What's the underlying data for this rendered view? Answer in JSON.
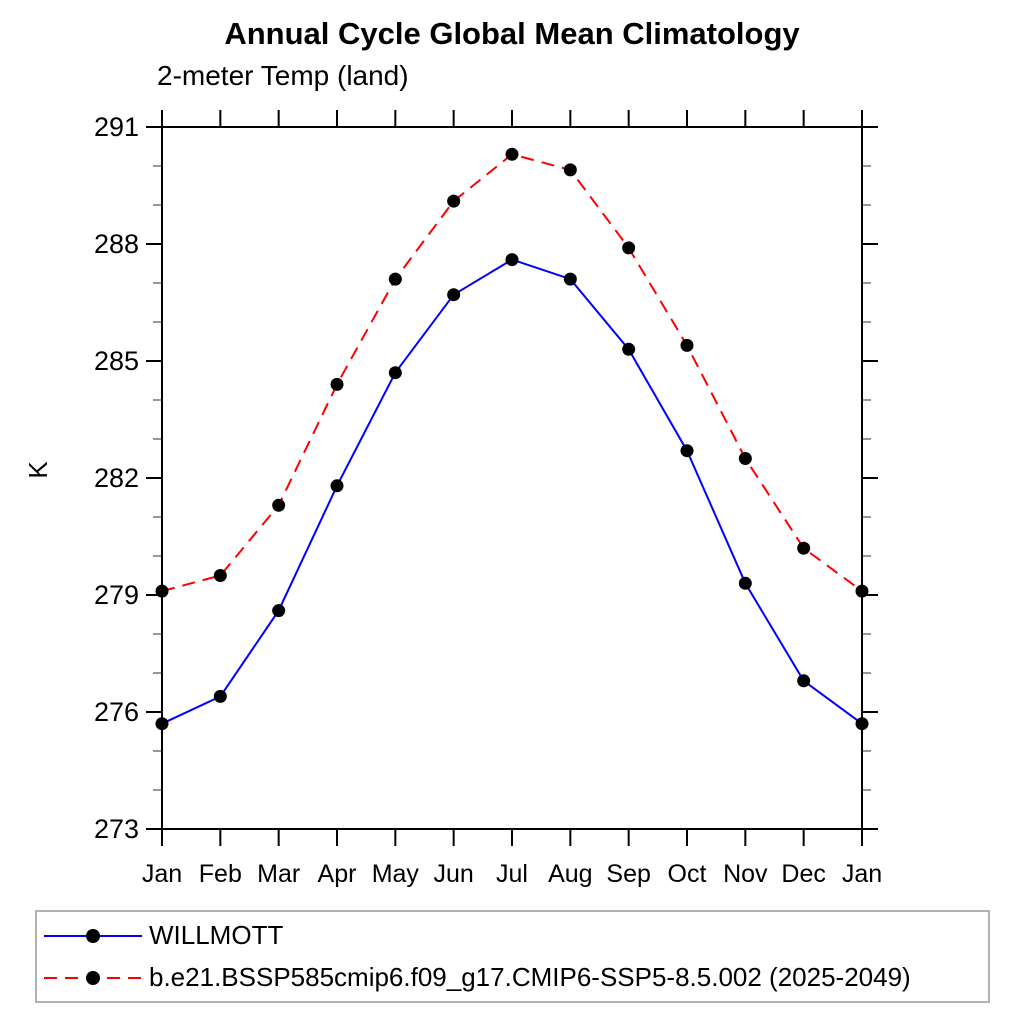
{
  "title": "Annual Cycle Global Mean Climatology",
  "subtitle": "2-meter Temp (land)",
  "colors": {
    "background": "#ffffff",
    "axis": "#000000",
    "minor_tick": "#999999",
    "legend_border": "#b2b2b2",
    "marker": "#000000",
    "series_blue": "#0000ff",
    "series_red": "#ff0000"
  },
  "chart_data": {
    "type": "line",
    "title": "Annual Cycle Global Mean Climatology",
    "subtitle": "2-meter Temp (land)",
    "xlabel": "",
    "ylabel": "K",
    "categories": [
      "Jan",
      "Feb",
      "Mar",
      "Apr",
      "May",
      "Jun",
      "Jul",
      "Aug",
      "Sep",
      "Oct",
      "Nov",
      "Dec",
      "Jan"
    ],
    "ylim": [
      273,
      291
    ],
    "yticks": [
      273,
      276,
      279,
      282,
      285,
      288,
      291
    ],
    "ytick_interval": 3,
    "yminor_interval": 1,
    "grid": false,
    "legend_position": "bottom-left-box",
    "series": [
      {
        "name": "WILLMOTT",
        "color": "#0000ff",
        "line_style": "solid",
        "marker": "circle",
        "marker_color": "#000000",
        "values": [
          275.7,
          276.4,
          278.6,
          281.8,
          284.7,
          286.7,
          287.6,
          287.1,
          285.3,
          282.7,
          279.3,
          276.8,
          275.7
        ]
      },
      {
        "name": "b.e21.BSSP585cmip6.f09_g17.CMIP6-SSP5-8.5.002 (2025-2049)",
        "color": "#ff0000",
        "line_style": "dashed",
        "marker": "circle",
        "marker_color": "#000000",
        "values": [
          279.1,
          279.5,
          281.3,
          284.4,
          287.1,
          289.1,
          290.3,
          289.9,
          287.9,
          285.4,
          282.5,
          280.2,
          279.1
        ]
      }
    ]
  }
}
